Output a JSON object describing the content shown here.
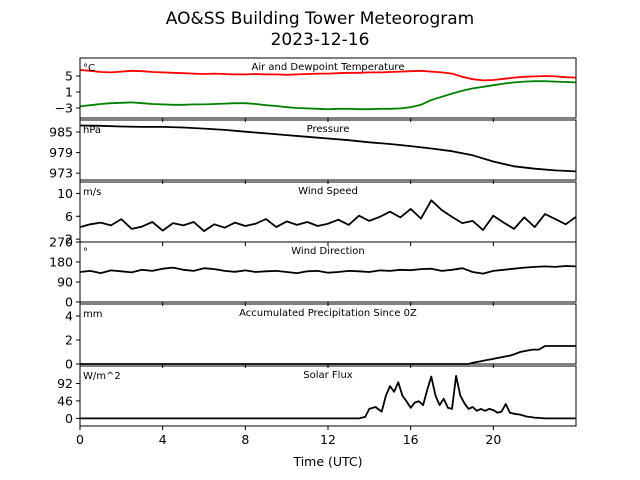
{
  "figure": {
    "title_line1": "AO&SS Building Tower Meteorogram",
    "title_line2": "2023-12-16",
    "xlabel": "Time (UTC)"
  },
  "x_axis": {
    "range": [
      0,
      24
    ],
    "ticks": [
      0,
      4,
      8,
      12,
      16,
      20
    ],
    "tick_labels": [
      "0",
      "4",
      "8",
      "12",
      "16",
      "20"
    ]
  },
  "chart_data": [
    {
      "type": "line",
      "title": "Air and Dewpoint Temperature",
      "unit": "°C",
      "ylim": [
        -5.5,
        9.5
      ],
      "yticks": [
        5,
        1,
        -3
      ],
      "ytick_labels": [
        "5",
        "1",
        "−3"
      ],
      "series": [
        {
          "color": "#ff0000",
          "x": [
            0,
            0.5,
            1,
            1.5,
            2,
            2.5,
            3,
            3.5,
            4,
            4.5,
            5,
            5.5,
            6,
            6.5,
            7,
            7.5,
            8,
            8.5,
            9,
            9.5,
            10,
            10.5,
            11,
            11.5,
            12,
            12.5,
            13,
            13.5,
            14,
            14.5,
            15,
            15.5,
            16,
            16.5,
            17,
            17.5,
            18,
            18.5,
            19,
            19.5,
            20,
            20.5,
            21,
            21.5,
            22,
            22.5,
            23,
            23.5,
            24
          ],
          "y": [
            6.5,
            6.3,
            6.0,
            5.9,
            6.1,
            6.3,
            6.2,
            6.0,
            5.9,
            5.8,
            5.7,
            5.6,
            5.5,
            5.6,
            5.5,
            5.4,
            5.4,
            5.5,
            5.4,
            5.4,
            5.3,
            5.4,
            5.5,
            5.6,
            5.6,
            5.7,
            5.8,
            5.8,
            5.9,
            5.9,
            6.0,
            6.1,
            6.2,
            6.3,
            6.1,
            5.9,
            5.6,
            4.8,
            4.2,
            3.9,
            4.0,
            4.3,
            4.6,
            4.8,
            4.9,
            5.0,
            4.9,
            4.7,
            4.6
          ]
        },
        {
          "color": "#008000",
          "x": [
            0,
            0.5,
            1,
            1.5,
            2,
            2.5,
            3,
            3.5,
            4,
            4.5,
            5,
            5.5,
            6,
            6.5,
            7,
            7.5,
            8,
            8.5,
            9,
            9.5,
            10,
            10.5,
            11,
            11.5,
            12,
            12.5,
            13,
            13.5,
            14,
            14.5,
            15,
            15.5,
            16,
            16.5,
            17,
            17.5,
            18,
            18.5,
            19,
            19.5,
            20,
            20.5,
            21,
            21.5,
            22,
            22.5,
            23,
            23.5,
            24
          ],
          "y": [
            -2.6,
            -2.3,
            -2.0,
            -1.8,
            -1.7,
            -1.6,
            -1.8,
            -2.0,
            -2.1,
            -2.2,
            -2.2,
            -2.1,
            -2.1,
            -2.0,
            -1.9,
            -1.8,
            -1.8,
            -2.0,
            -2.3,
            -2.5,
            -2.8,
            -3.0,
            -3.1,
            -3.2,
            -3.3,
            -3.2,
            -3.2,
            -3.3,
            -3.3,
            -3.2,
            -3.2,
            -3.1,
            -2.8,
            -2.2,
            -1.0,
            -0.2,
            0.6,
            1.3,
            1.9,
            2.3,
            2.7,
            3.1,
            3.4,
            3.6,
            3.7,
            3.7,
            3.6,
            3.5,
            3.4
          ]
        }
      ]
    },
    {
      "type": "line",
      "title": "Pressure",
      "unit": "hPa",
      "ylim": [
        971,
        988.5
      ],
      "yticks": [
        985,
        979,
        973
      ],
      "ytick_labels": [
        "985",
        "979",
        "973"
      ],
      "series": [
        {
          "color": "#000000",
          "x": [
            0,
            1,
            2,
            3,
            4,
            5,
            6,
            7,
            8,
            9,
            10,
            11,
            12,
            13,
            14,
            15,
            16,
            17,
            18,
            19,
            20,
            21,
            22,
            23,
            24
          ],
          "y": [
            986.9,
            986.8,
            986.6,
            986.5,
            986.5,
            986.3,
            986.0,
            985.6,
            985.1,
            984.6,
            984.1,
            983.6,
            983.1,
            982.6,
            982.0,
            981.5,
            980.9,
            980.2,
            979.4,
            978.2,
            976.4,
            975.0,
            974.3,
            973.8,
            973.5
          ]
        }
      ]
    },
    {
      "type": "line",
      "title": "Wind Speed",
      "unit": "m/s",
      "ylim": [
        1.5,
        12
      ],
      "yticks": [
        10,
        6,
        2
      ],
      "ytick_labels": [
        "10",
        "6",
        "2"
      ],
      "series": [
        {
          "color": "#000000",
          "x": [
            0,
            0.5,
            1,
            1.5,
            2,
            2.5,
            3,
            3.5,
            4,
            4.5,
            5,
            5.5,
            6,
            6.5,
            7,
            7.5,
            8,
            8.5,
            9,
            9.5,
            10,
            10.5,
            11,
            11.5,
            12,
            12.5,
            13,
            13.5,
            14,
            14.5,
            15,
            15.5,
            16,
            16.5,
            17,
            17.5,
            18,
            18.5,
            19,
            19.5,
            20,
            20.5,
            21,
            21.5,
            22,
            22.5,
            23,
            23.5,
            24
          ],
          "y": [
            4.1,
            4.6,
            4.9,
            4.4,
            5.5,
            3.8,
            4.2,
            5.0,
            3.5,
            4.8,
            4.4,
            5.0,
            3.4,
            4.6,
            4.0,
            4.9,
            4.3,
            4.7,
            5.5,
            4.1,
            5.1,
            4.5,
            5.0,
            4.3,
            4.7,
            5.4,
            4.5,
            6.1,
            5.2,
            5.9,
            6.8,
            5.8,
            7.3,
            5.6,
            8.8,
            7.1,
            5.9,
            4.8,
            5.2,
            3.6,
            6.1,
            4.9,
            3.8,
            5.8,
            4.1,
            6.4,
            5.5,
            4.6,
            5.9
          ]
        }
      ]
    },
    {
      "type": "line",
      "title": "Wind Direction",
      "unit": "°",
      "ylim": [
        0,
        270
      ],
      "yticks": [
        270,
        180,
        90,
        0
      ],
      "ytick_labels": [
        "270",
        "180",
        "90",
        "0"
      ],
      "series": [
        {
          "color": "#000000",
          "x": [
            0,
            0.5,
            1,
            1.5,
            2,
            2.5,
            3,
            3.5,
            4,
            4.5,
            5,
            5.5,
            6,
            6.5,
            7,
            7.5,
            8,
            8.5,
            9,
            9.5,
            10,
            10.5,
            11,
            11.5,
            12,
            12.5,
            13,
            13.5,
            14,
            14.5,
            15,
            15.5,
            16,
            16.5,
            17,
            17.5,
            18,
            18.5,
            19,
            19.5,
            20,
            20.5,
            21,
            21.5,
            22,
            22.5,
            23,
            23.5,
            24
          ],
          "y": [
            135,
            140,
            130,
            142,
            138,
            133,
            145,
            140,
            150,
            155,
            145,
            140,
            152,
            148,
            140,
            136,
            142,
            135,
            138,
            140,
            135,
            130,
            138,
            140,
            132,
            135,
            140,
            138,
            135,
            142,
            140,
            145,
            143,
            148,
            150,
            140,
            145,
            152,
            135,
            128,
            140,
            145,
            150,
            155,
            158,
            160,
            158,
            162,
            160
          ]
        }
      ]
    },
    {
      "type": "line",
      "title": "Accumulated Precipitation Since 0Z",
      "unit": "mm",
      "ylim": [
        0,
        5
      ],
      "yticks": [
        4,
        2,
        0
      ],
      "ytick_labels": [
        "4",
        "2",
        "0"
      ],
      "series": [
        {
          "color": "#000000",
          "x": [
            0,
            18.8,
            19.0,
            19.3,
            19.6,
            19.9,
            20.2,
            20.5,
            20.8,
            21.0,
            21.3,
            21.6,
            21.9,
            22.2,
            22.5,
            24
          ],
          "y": [
            0,
            0,
            0.1,
            0.2,
            0.3,
            0.4,
            0.5,
            0.6,
            0.7,
            0.8,
            1.0,
            1.1,
            1.2,
            1.2,
            1.5,
            1.5
          ]
        }
      ]
    },
    {
      "type": "line",
      "title": "Solar Flux",
      "unit": "W/m^2",
      "ylim": [
        -20,
        138
      ],
      "yticks": [
        92,
        46,
        0
      ],
      "ytick_labels": [
        "92",
        "46",
        "0"
      ],
      "series": [
        {
          "color": "#000000",
          "x": [
            0,
            13.5,
            13.8,
            14.0,
            14.3,
            14.6,
            14.8,
            15.0,
            15.2,
            15.4,
            15.6,
            15.8,
            16.0,
            16.2,
            16.4,
            16.6,
            16.8,
            17.0,
            17.2,
            17.4,
            17.6,
            17.8,
            18.0,
            18.2,
            18.4,
            18.6,
            18.8,
            19.0,
            19.2,
            19.4,
            19.6,
            19.8,
            20.0,
            20.2,
            20.4,
            20.6,
            20.8,
            21.0,
            21.3,
            21.6,
            22.0,
            22.5,
            23,
            24
          ],
          "y": [
            0,
            0,
            4,
            25,
            30,
            18,
            60,
            85,
            70,
            95,
            60,
            45,
            28,
            42,
            45,
            35,
            75,
            110,
            60,
            35,
            52,
            28,
            25,
            112,
            60,
            40,
            25,
            30,
            20,
            25,
            20,
            25,
            22,
            15,
            18,
            38,
            15,
            12,
            10,
            5,
            2,
            0,
            0,
            0
          ]
        }
      ]
    }
  ]
}
